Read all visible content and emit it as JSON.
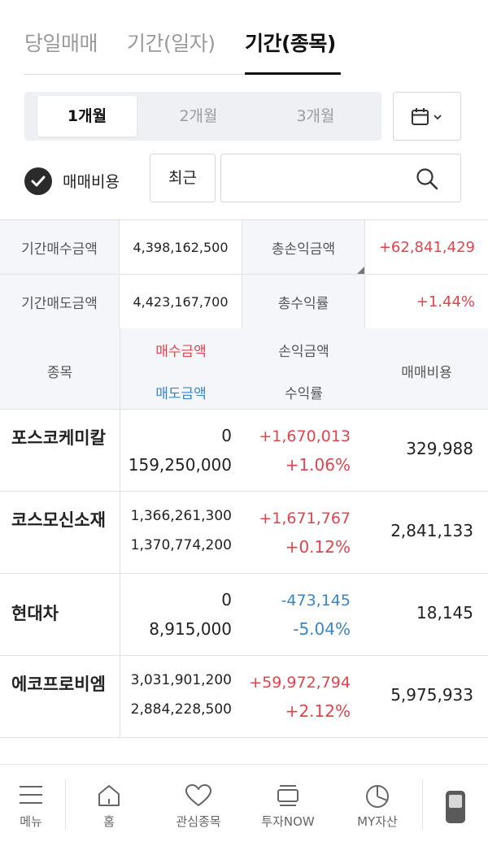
{
  "tabs": [
    "당일매매",
    "기간(일자)",
    "기간(종목)"
  ],
  "active_tab": "기간(종목)",
  "period": {
    "options": [
      "1개월",
      "2개월",
      "3개월"
    ],
    "selected": "1개월"
  },
  "calendar_icon": "calendar-icon",
  "options": {
    "fee_checkbox_label": "매매비용",
    "fee_checked": true,
    "recent_button": "최근",
    "search_value": "",
    "search_placeholder": ""
  },
  "summary": {
    "buy_label": "기간매수금액",
    "buy_value": "4,398,162,500",
    "sell_label": "기간매도금액",
    "sell_value": "4,423,167,700",
    "pl_label": "총손익금액",
    "pl_value": "+62,841,429",
    "rate_label": "총수익률",
    "rate_value": "+1.44%"
  },
  "table": {
    "headers": {
      "name": "종목",
      "buy": "매수금액",
      "sell": "매도금액",
      "pl": "손익금액",
      "rate": "수익률",
      "fee": "매매비용"
    },
    "rows": [
      {
        "name": "포스코케미칼",
        "buy": "0",
        "sell": "159,250,000",
        "pl": "+1,670,013",
        "rate": "+1.06%",
        "fee": "329,988"
      },
      {
        "name": "코스모신소재",
        "buy": "1,366,261,300",
        "sell": "1,370,774,200",
        "pl": "+1,671,767",
        "rate": "+0.12%",
        "fee": "2,841,133"
      },
      {
        "name": "현대차",
        "buy": "0",
        "sell": "8,915,000",
        "pl": "-473,145",
        "rate": "-5.04%",
        "fee": "18,145"
      },
      {
        "name": "에코프로비엠",
        "buy": "3,031,901,200",
        "sell": "2,884,228,500",
        "pl": "+59,972,794",
        "rate": "+2.12%",
        "fee": "5,975,933"
      }
    ]
  },
  "bottom_nav": [
    {
      "label": "메뉴",
      "icon": "menu-icon"
    },
    {
      "label": "홈",
      "icon": "home-icon"
    },
    {
      "label": "관심종목",
      "icon": "heart-icon"
    },
    {
      "label": "투자NOW",
      "icon": "stack-icon"
    },
    {
      "label": "MY자산",
      "icon": "pie-chart-icon"
    }
  ],
  "colors": {
    "positive": "#e0454e",
    "negative": "#3a86c4",
    "header_bg": "#f5f6f9"
  }
}
